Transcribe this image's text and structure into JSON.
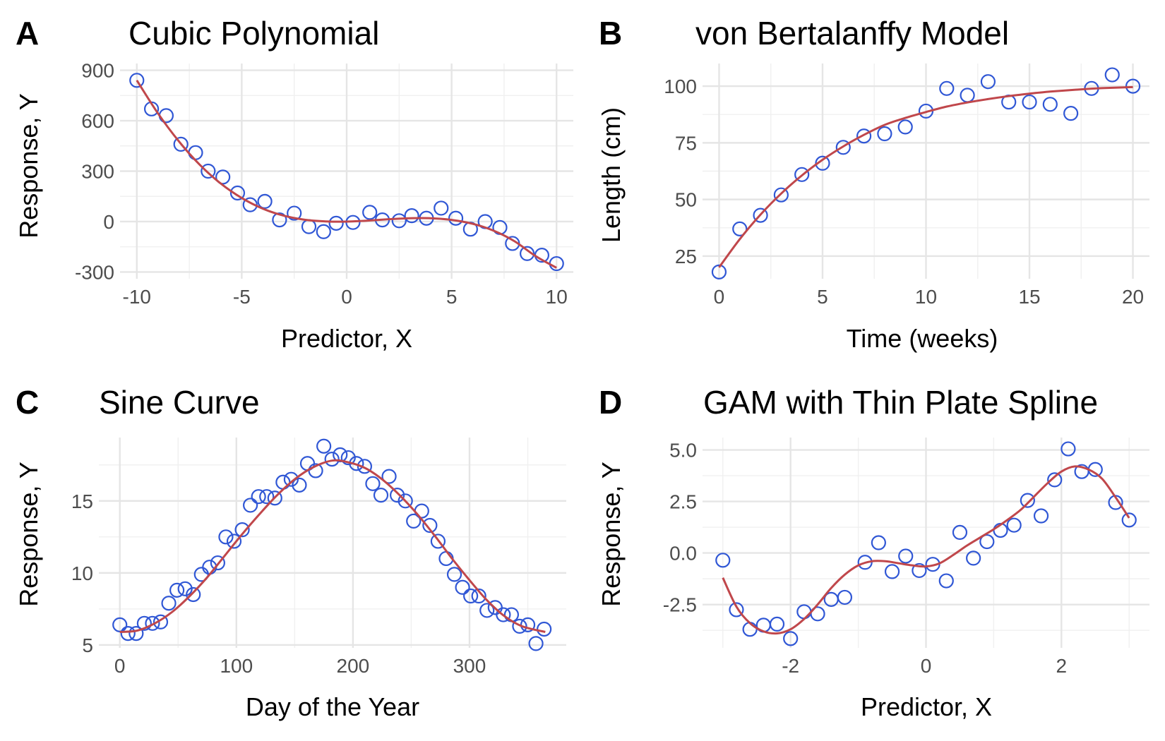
{
  "chart_data": [
    {
      "type": "scatter",
      "panel": "A",
      "title": "Cubic Polynomial",
      "xlabel": "Predictor, X",
      "ylabel": "Response, Y",
      "xlim": [
        -10.8,
        10.8
      ],
      "ylim": [
        -340,
        940
      ],
      "xticks": [
        -10,
        -5,
        0,
        5,
        10
      ],
      "xtick_labels": [
        "-10",
        "-5",
        "0",
        "5",
        "10"
      ],
      "yticks": [
        -300,
        0,
        300,
        600,
        900
      ],
      "ytick_labels": [
        "-300",
        "0",
        "300",
        "600",
        "900"
      ],
      "grid": true,
      "points": {
        "x": [
          -10,
          -9.3,
          -8.6,
          -7.9,
          -7.2,
          -6.6,
          -5.9,
          -5.2,
          -4.6,
          -3.9,
          -3.2,
          -2.5,
          -1.8,
          -1.1,
          -0.5,
          0.3,
          1.1,
          1.7,
          2.5,
          3.1,
          3.8,
          4.5,
          5.2,
          5.9,
          6.6,
          7.3,
          7.9,
          8.6,
          9.3,
          10
        ],
        "y": [
          840,
          670,
          630,
          460,
          410,
          300,
          265,
          170,
          100,
          120,
          10,
          50,
          -30,
          -60,
          -10,
          -5,
          55,
          10,
          5,
          35,
          20,
          80,
          20,
          -45,
          0,
          -35,
          -130,
          -190,
          -200,
          -250
        ]
      },
      "fit": {
        "x": [
          -10,
          -9,
          -8,
          -7,
          -6,
          -5,
          -4,
          -3,
          -2,
          -1,
          0,
          1,
          2,
          3,
          4,
          5,
          6,
          7,
          8,
          9,
          10
        ],
        "y": [
          840,
          645,
          478,
          338,
          226,
          140,
          77,
          35,
          11,
          1,
          0,
          6,
          14,
          20,
          20,
          10,
          -13,
          -54,
          -117,
          -205,
          -275
        ]
      }
    },
    {
      "type": "scatter",
      "panel": "B",
      "title": "von Bertalanffy Model",
      "xlabel": "Time (weeks)",
      "ylabel": "Length (cm)",
      "xlim": [
        -0.8,
        20.8
      ],
      "ylim": [
        15,
        110
      ],
      "xticks": [
        0,
        5,
        10,
        15,
        20
      ],
      "xtick_labels": [
        "0",
        "5",
        "10",
        "15",
        "20"
      ],
      "yticks": [
        25,
        50,
        75,
        100
      ],
      "ytick_labels": [
        "25",
        "50",
        "75",
        "100"
      ],
      "grid": true,
      "points": {
        "x": [
          0,
          1,
          2,
          3,
          4,
          5,
          6,
          7,
          8,
          9,
          10,
          11,
          12,
          13,
          14,
          15,
          16,
          17,
          18,
          19,
          20
        ],
        "y": [
          18,
          37,
          43,
          52,
          61,
          66,
          73,
          78,
          79,
          82,
          89,
          99,
          96,
          102,
          93,
          93,
          92,
          88,
          99,
          105,
          100
        ]
      },
      "fit": {
        "x": [
          0,
          1,
          2,
          3,
          4,
          5,
          6,
          7,
          8,
          9,
          10,
          11,
          12,
          13,
          14,
          15,
          16,
          17,
          18,
          19,
          20
        ],
        "y": [
          20,
          32.5,
          43.3,
          52.6,
          60.6,
          67.5,
          73.4,
          78.5,
          82.9,
          86.0,
          88.6,
          91.0,
          92.8,
          94.3,
          95.6,
          96.7,
          97.6,
          98.3,
          98.9,
          99.3,
          99.6
        ]
      }
    },
    {
      "type": "scatter",
      "panel": "C",
      "title": "Sine Curve",
      "xlabel": "Day of the Year",
      "ylabel": "Response, Y",
      "xlim": [
        -18,
        383
      ],
      "ylim": [
        4.8,
        19.4
      ],
      "xticks": [
        0,
        100,
        200,
        300
      ],
      "xtick_labels": [
        "0",
        "100",
        "200",
        "300"
      ],
      "yticks": [
        5,
        10,
        15
      ],
      "ytick_labels": [
        "5",
        "10",
        "15"
      ],
      "grid": true,
      "points": {
        "x": [
          0,
          7,
          14,
          21,
          28,
          35,
          42,
          49,
          56,
          63,
          70,
          77,
          84,
          91,
          98,
          105,
          112,
          119,
          126,
          133,
          140,
          147,
          154,
          161,
          168,
          175,
          182,
          189,
          196,
          203,
          210,
          217,
          224,
          231,
          238,
          245,
          252,
          259,
          266,
          273,
          280,
          287,
          294,
          301,
          308,
          315,
          322,
          329,
          336,
          343,
          350,
          357,
          364
        ],
        "y": [
          6.4,
          5.8,
          5.8,
          6.5,
          6.5,
          6.6,
          7.9,
          8.8,
          8.9,
          8.5,
          9.9,
          10.4,
          10.7,
          12.5,
          12.2,
          13.0,
          14.7,
          15.3,
          15.3,
          15.2,
          16.3,
          16.5,
          16.1,
          17.6,
          17.1,
          18.8,
          17.9,
          18.2,
          18.0,
          17.6,
          17.4,
          16.2,
          15.4,
          16.7,
          15.4,
          15.0,
          13.6,
          14.3,
          13.3,
          12.2,
          11.0,
          9.9,
          9.0,
          8.4,
          8.4,
          7.4,
          7.6,
          7.1,
          7.1,
          6.3,
          6.4,
          5.1,
          6.1
        ]
      },
      "fit": {
        "x": [
          0,
          15,
          30,
          45,
          60,
          75,
          90,
          105,
          120,
          135,
          150,
          165,
          182,
          195,
          210,
          225,
          240,
          255,
          270,
          285,
          300,
          315,
          330,
          345,
          365
        ],
        "y": [
          5.9,
          6.0,
          6.5,
          7.3,
          8.4,
          9.7,
          11.2,
          12.7,
          14.1,
          15.4,
          16.5,
          17.3,
          17.8,
          17.7,
          17.3,
          16.5,
          15.4,
          14.1,
          12.6,
          11.0,
          9.5,
          8.1,
          7.0,
          6.3,
          5.9
        ]
      }
    },
    {
      "type": "scatter",
      "panel": "D",
      "title": "GAM with Thin Plate Spline",
      "xlabel": "Predictor, X",
      "ylabel": "Response, Y",
      "xlim": [
        -3.3,
        3.3
      ],
      "ylim": [
        -4.6,
        5.6
      ],
      "xticks": [
        -2,
        0,
        2
      ],
      "xtick_labels": [
        "-2",
        "0",
        "2"
      ],
      "yticks": [
        -2.5,
        0.0,
        2.5,
        5.0
      ],
      "ytick_labels": [
        "-2.5",
        "0.0",
        "2.5",
        "5.0"
      ],
      "grid": true,
      "points": {
        "x": [
          -3.0,
          -2.8,
          -2.6,
          -2.4,
          -2.2,
          -2.0,
          -1.8,
          -1.6,
          -1.4,
          -1.2,
          -0.9,
          -0.7,
          -0.5,
          -0.3,
          -0.1,
          0.1,
          0.3,
          0.5,
          0.7,
          0.9,
          1.1,
          1.3,
          1.5,
          1.7,
          1.9,
          2.1,
          2.3,
          2.5,
          2.8,
          3.0
        ],
        "y": [
          -0.35,
          -2.75,
          -3.7,
          -3.5,
          -3.45,
          -4.15,
          -2.85,
          -2.95,
          -2.25,
          -2.15,
          -0.45,
          0.5,
          -0.9,
          -0.15,
          -0.85,
          -0.55,
          -1.35,
          1.0,
          -0.25,
          0.55,
          1.1,
          1.35,
          2.55,
          1.8,
          3.55,
          5.05,
          3.95,
          4.05,
          2.45,
          1.6
        ]
      },
      "fit": {
        "x": [
          -3.0,
          -2.8,
          -2.6,
          -2.4,
          -2.2,
          -2.0,
          -1.8,
          -1.6,
          -1.4,
          -1.2,
          -1.0,
          -0.8,
          -0.6,
          -0.4,
          -0.2,
          0.0,
          0.2,
          0.4,
          0.6,
          0.8,
          1.0,
          1.2,
          1.4,
          1.6,
          1.8,
          2.0,
          2.2,
          2.4,
          2.6,
          2.8,
          3.0
        ],
        "y": [
          -1.2,
          -2.6,
          -3.4,
          -3.8,
          -3.9,
          -3.7,
          -3.2,
          -2.5,
          -1.7,
          -1.05,
          -0.6,
          -0.4,
          -0.4,
          -0.5,
          -0.6,
          -0.65,
          -0.5,
          -0.1,
          0.35,
          0.75,
          1.15,
          1.6,
          2.1,
          2.75,
          3.4,
          3.95,
          4.2,
          4.05,
          3.6,
          2.7,
          1.7
        ]
      }
    }
  ]
}
